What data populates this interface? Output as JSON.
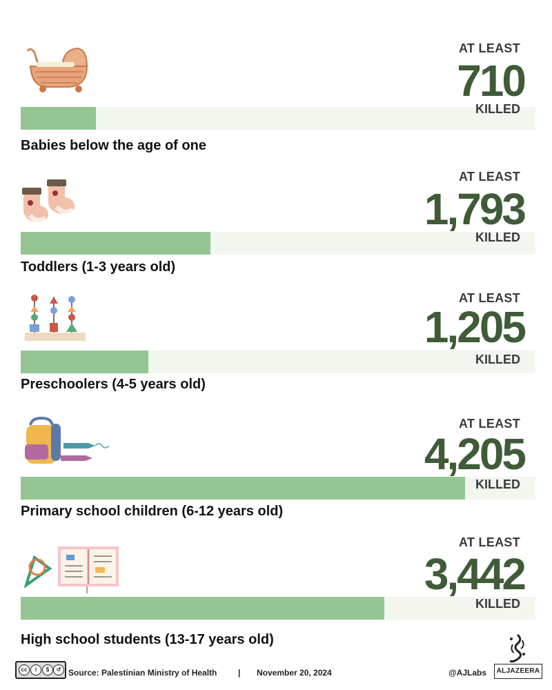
{
  "chart_data": {
    "type": "bar",
    "categories": [
      "Babies below the age of one",
      "Toddlers (1-3 years old)",
      "Preschoolers (4-5 years old)",
      "Primary school children (6-12 years old)",
      "High school students (13-17 years old)"
    ],
    "values": [
      710,
      1793,
      1205,
      4205,
      3442
    ],
    "value_labels": [
      "710",
      "1,793",
      "1,205",
      "4,205",
      "3,442"
    ],
    "prefix_text": "AT LEAST",
    "suffix_text": "KILLED",
    "orientation": "horizontal",
    "bar_max": 4870,
    "colors": {
      "fill": "#93c693",
      "track": "#f1f6ef",
      "number": "#3f5b38"
    },
    "icons": [
      "baby-carriage-icon",
      "baby-socks-icon",
      "stacking-toy-icon",
      "backpack-crayons-icon",
      "book-set-square-icon"
    ]
  },
  "footer": {
    "license": "cc-by-nc-sa-icon",
    "source": "Source:  Palestinian Ministry of Health",
    "separator": "|",
    "date": "November 20, 2024",
    "handle": "@AJLabs",
    "brand": "ALJAZEERA"
  }
}
